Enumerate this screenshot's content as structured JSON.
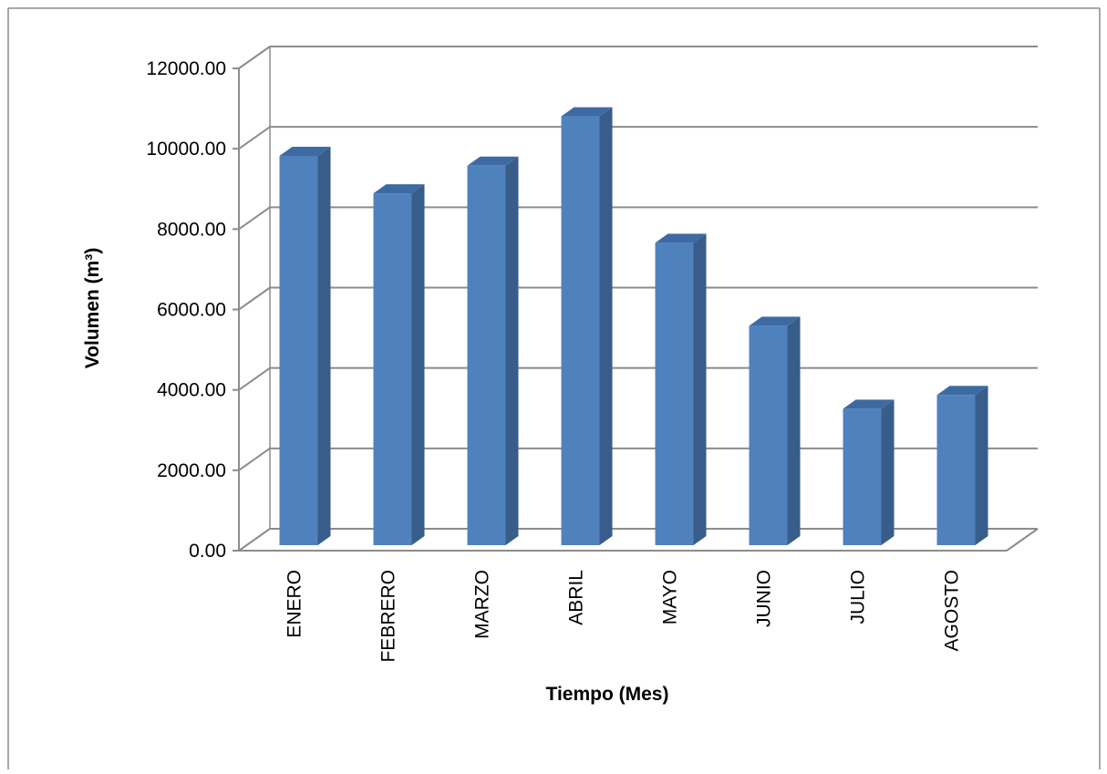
{
  "chart_data": {
    "type": "bar",
    "title": "",
    "xlabel": "Tiempo (Mes)",
    "ylabel": "Volumen (m³)",
    "categories": [
      "ENERO",
      "FEBRERO",
      "MARZO",
      "ABRIL",
      "MAYO",
      "JUNIO",
      "JULIO",
      "AGOSTO"
    ],
    "values": [
      9850,
      8900,
      9600,
      10850,
      7650,
      5550,
      3450,
      3800
    ],
    "ylim": [
      0,
      12000
    ],
    "yticks": [
      "0.00",
      "2000.00",
      "4000.00",
      "6000.00",
      "8000.00",
      "10000.00",
      "12000.00"
    ],
    "grid": true,
    "legend": "none",
    "style": "3d-column"
  },
  "colors": {
    "bar_front": "#4f81bd",
    "bar_side": "#385d8a",
    "bar_top": "#3e6aa3",
    "gridline": "#8c8c8c",
    "frame": "#8c8c8c"
  }
}
